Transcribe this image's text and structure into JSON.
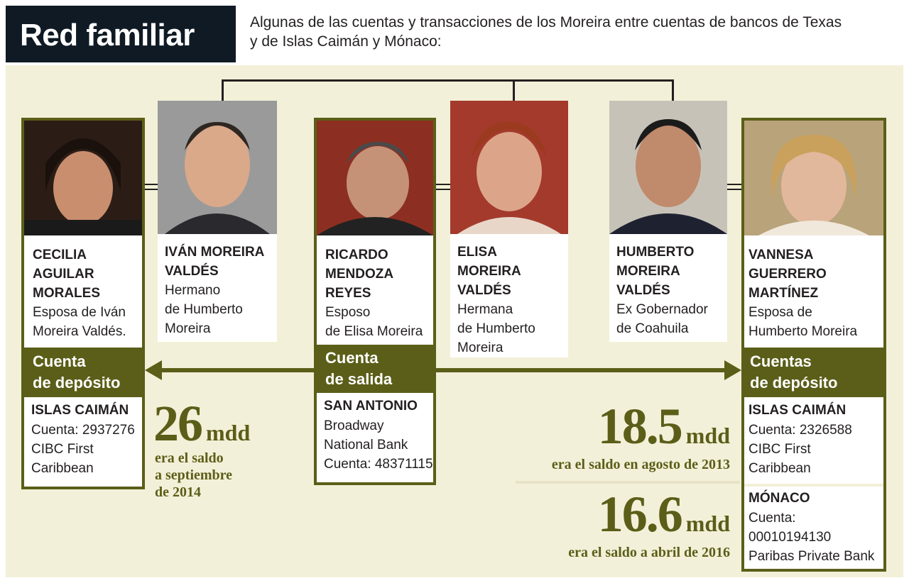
{
  "header": {
    "title": "Red familiar",
    "subtitle_line1": "Algunas de las cuentas y transacciones de los Moreira entre cuentas de bancos de Texas",
    "subtitle_line2": "y de Islas Caimán y Mónaco:"
  },
  "people": [
    {
      "name1": "CECILIA",
      "name2": "AGUILAR",
      "name3": "MORALES",
      "role1": "Esposa de Iván",
      "role2": "Moreira Valdés."
    },
    {
      "name1": "IVÁN MOREIRA",
      "name2": "VALDÉS",
      "role1": "Hermano",
      "role2": "de Humberto",
      "role3": "Moreira"
    },
    {
      "name1": "RICARDO",
      "name2": "MENDOZA",
      "name3": "REYES",
      "role1": "Esposo",
      "role2": "de Elisa Moreira"
    },
    {
      "name1": "ELISA",
      "name2": "MOREIRA",
      "name3": "VALDÉS",
      "role1": "Hermana",
      "role2": "de Humberto",
      "role3": "Moreira"
    },
    {
      "name1": "HUMBERTO",
      "name2": "MOREIRA",
      "name3": "VALDÉS",
      "role1": "Ex Gobernador",
      "role2": "de Coahuila"
    },
    {
      "name1": "VANNESA",
      "name2": "GUERRERO",
      "name3": "MARTÍNEZ",
      "role1": "Esposa de",
      "role2": "Humberto Moreira"
    }
  ],
  "accounts": {
    "left": {
      "label1": "Cuenta",
      "label2": "de depósito",
      "location": "ISLAS CAIMÁN",
      "line1": "Cuenta: 2937276",
      "line2": "CIBC First",
      "line3": "Caribbean"
    },
    "center": {
      "label1": "Cuenta",
      "label2": "de salida",
      "location": "SAN ANTONIO",
      "line1": "Broadway",
      "line2": "National Bank",
      "line3": "Cuenta: 48371115"
    },
    "right": {
      "label1": "Cuentas",
      "label2": "de depósito",
      "location1": "ISLAS CAIMÁN",
      "line1": "Cuenta: 2326588",
      "line2": "CIBC First",
      "line3": "Caribbean",
      "location2": "MÓNACO",
      "line4": "Cuenta:",
      "line5": "00010194130",
      "line6": "Paribas Private Bank"
    }
  },
  "balances": {
    "left": {
      "number": "26",
      "unit": "mdd",
      "note1": "era el saldo",
      "note2": "a septiembre",
      "note3": "de 2014"
    },
    "right_top": {
      "number": "18.5",
      "unit": "mdd",
      "note": "era el saldo en agosto de 2013"
    },
    "right_bottom": {
      "number": "16.6",
      "unit": "mdd",
      "note": "era el saldo a abril de 2016"
    }
  },
  "colors": {
    "olive": "#5b5e18",
    "navy": "#0f1a24",
    "panel": "#f3f0d9"
  }
}
